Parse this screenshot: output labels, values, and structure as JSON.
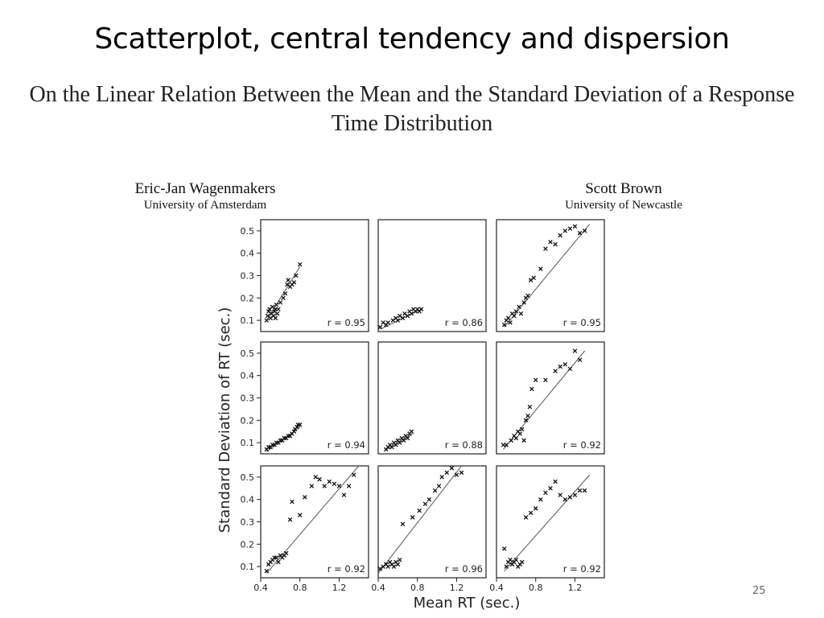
{
  "slide": {
    "title": "Scatterplot, central tendency and dispersion",
    "page_number": "25"
  },
  "paper": {
    "title": "On the Linear Relation Between the Mean and the Standard Deviation of a Response Time Distribution",
    "authors": [
      {
        "name": "Eric-Jan Wagenmakers",
        "affiliation": "University of Amsterdam"
      },
      {
        "name": "Scott Brown",
        "affiliation": "University of Newcastle"
      }
    ]
  },
  "chart_data": {
    "type": "scatter",
    "layout": "3x3 grid of panels",
    "xlabel": "Mean RT (sec.)",
    "ylabel": "Standard Deviation of RT (sec.)",
    "xlim": [
      0.4,
      1.5
    ],
    "ylim": [
      0.05,
      0.55
    ],
    "xticks": [
      0.4,
      0.8,
      1.2
    ],
    "yticks": [
      0.1,
      0.2,
      0.3,
      0.4,
      0.5
    ],
    "marker": "x",
    "panels": [
      {
        "r_label": "r = 0.95",
        "points": [
          [
            0.46,
            0.1
          ],
          [
            0.47,
            0.12
          ],
          [
            0.48,
            0.14
          ],
          [
            0.49,
            0.15
          ],
          [
            0.5,
            0.11
          ],
          [
            0.51,
            0.13
          ],
          [
            0.52,
            0.16
          ],
          [
            0.53,
            0.12
          ],
          [
            0.54,
            0.14
          ],
          [
            0.55,
            0.15
          ],
          [
            0.56,
            0.17
          ],
          [
            0.55,
            0.11
          ],
          [
            0.57,
            0.13
          ],
          [
            0.58,
            0.15
          ],
          [
            0.6,
            0.18
          ],
          [
            0.63,
            0.2
          ],
          [
            0.65,
            0.22
          ],
          [
            0.67,
            0.26
          ],
          [
            0.68,
            0.28
          ],
          [
            0.7,
            0.25
          ],
          [
            0.72,
            0.26
          ],
          [
            0.74,
            0.27
          ],
          [
            0.76,
            0.3
          ],
          [
            0.8,
            0.35
          ]
        ],
        "fit": [
          [
            0.46,
            0.1
          ],
          [
            0.8,
            0.34
          ]
        ]
      },
      {
        "r_label": "r = 0.86",
        "points": [
          [
            0.42,
            0.07
          ],
          [
            0.45,
            0.09
          ],
          [
            0.48,
            0.08
          ],
          [
            0.5,
            0.09
          ],
          [
            0.55,
            0.1
          ],
          [
            0.58,
            0.11
          ],
          [
            0.6,
            0.1
          ],
          [
            0.62,
            0.12
          ],
          [
            0.65,
            0.11
          ],
          [
            0.67,
            0.13
          ],
          [
            0.7,
            0.12
          ],
          [
            0.72,
            0.14
          ],
          [
            0.74,
            0.13
          ],
          [
            0.76,
            0.15
          ],
          [
            0.78,
            0.14
          ],
          [
            0.8,
            0.15
          ],
          [
            0.82,
            0.14
          ],
          [
            0.84,
            0.15
          ]
        ],
        "fit": [
          [
            0.42,
            0.06
          ],
          [
            0.84,
            0.15
          ]
        ]
      },
      {
        "r_label": "r = 0.95",
        "points": [
          [
            0.48,
            0.08
          ],
          [
            0.5,
            0.1
          ],
          [
            0.52,
            0.11
          ],
          [
            0.54,
            0.09
          ],
          [
            0.56,
            0.13
          ],
          [
            0.58,
            0.12
          ],
          [
            0.6,
            0.14
          ],
          [
            0.63,
            0.16
          ],
          [
            0.65,
            0.13
          ],
          [
            0.68,
            0.18
          ],
          [
            0.7,
            0.2
          ],
          [
            0.72,
            0.21
          ],
          [
            0.75,
            0.28
          ],
          [
            0.78,
            0.29
          ],
          [
            0.85,
            0.33
          ],
          [
            0.9,
            0.42
          ],
          [
            0.95,
            0.45
          ],
          [
            1.0,
            0.44
          ],
          [
            1.05,
            0.48
          ],
          [
            1.1,
            0.5
          ],
          [
            1.15,
            0.51
          ],
          [
            1.2,
            0.52
          ],
          [
            1.25,
            0.49
          ],
          [
            1.3,
            0.5
          ]
        ],
        "fit": [
          [
            0.48,
            0.07
          ],
          [
            1.35,
            0.53
          ]
        ]
      },
      {
        "r_label": "r = 0.94",
        "points": [
          [
            0.46,
            0.07
          ],
          [
            0.48,
            0.08
          ],
          [
            0.5,
            0.08
          ],
          [
            0.52,
            0.09
          ],
          [
            0.54,
            0.09
          ],
          [
            0.56,
            0.1
          ],
          [
            0.58,
            0.1
          ],
          [
            0.6,
            0.11
          ],
          [
            0.62,
            0.11
          ],
          [
            0.64,
            0.12
          ],
          [
            0.66,
            0.12
          ],
          [
            0.68,
            0.13
          ],
          [
            0.7,
            0.13
          ],
          [
            0.72,
            0.14
          ],
          [
            0.74,
            0.15
          ],
          [
            0.75,
            0.16
          ],
          [
            0.77,
            0.17
          ],
          [
            0.78,
            0.18
          ],
          [
            0.8,
            0.18
          ]
        ],
        "fit": [
          [
            0.46,
            0.06
          ],
          [
            0.8,
            0.17
          ]
        ]
      },
      {
        "r_label": "r = 0.88",
        "points": [
          [
            0.48,
            0.07
          ],
          [
            0.5,
            0.08
          ],
          [
            0.52,
            0.09
          ],
          [
            0.54,
            0.08
          ],
          [
            0.56,
            0.1
          ],
          [
            0.58,
            0.09
          ],
          [
            0.6,
            0.11
          ],
          [
            0.62,
            0.1
          ],
          [
            0.64,
            0.12
          ],
          [
            0.66,
            0.11
          ],
          [
            0.68,
            0.13
          ],
          [
            0.7,
            0.12
          ],
          [
            0.72,
            0.14
          ],
          [
            0.74,
            0.15
          ]
        ],
        "fit": [
          [
            0.48,
            0.07
          ],
          [
            0.75,
            0.14
          ]
        ]
      },
      {
        "r_label": "r = 0.92",
        "points": [
          [
            0.47,
            0.09
          ],
          [
            0.5,
            0.09
          ],
          [
            0.55,
            0.11
          ],
          [
            0.58,
            0.13
          ],
          [
            0.6,
            0.12
          ],
          [
            0.62,
            0.15
          ],
          [
            0.64,
            0.14
          ],
          [
            0.66,
            0.16
          ],
          [
            0.68,
            0.11
          ],
          [
            0.7,
            0.2
          ],
          [
            0.72,
            0.22
          ],
          [
            0.74,
            0.26
          ],
          [
            0.76,
            0.34
          ],
          [
            0.8,
            0.38
          ],
          [
            0.9,
            0.38
          ],
          [
            1.0,
            0.42
          ],
          [
            1.05,
            0.44
          ],
          [
            1.1,
            0.45
          ],
          [
            1.15,
            0.43
          ],
          [
            1.2,
            0.51
          ],
          [
            1.25,
            0.47
          ]
        ],
        "fit": [
          [
            0.47,
            0.07
          ],
          [
            1.3,
            0.51
          ]
        ]
      },
      {
        "r_label": "r = 0.92",
        "points": [
          [
            0.46,
            0.08
          ],
          [
            0.48,
            0.11
          ],
          [
            0.5,
            0.12
          ],
          [
            0.52,
            0.13
          ],
          [
            0.54,
            0.14
          ],
          [
            0.56,
            0.14
          ],
          [
            0.58,
            0.12
          ],
          [
            0.6,
            0.15
          ],
          [
            0.62,
            0.14
          ],
          [
            0.64,
            0.15
          ],
          [
            0.66,
            0.16
          ],
          [
            0.7,
            0.31
          ],
          [
            0.72,
            0.39
          ],
          [
            0.8,
            0.33
          ],
          [
            0.85,
            0.41
          ],
          [
            0.92,
            0.46
          ],
          [
            0.96,
            0.5
          ],
          [
            1.0,
            0.49
          ],
          [
            1.05,
            0.46
          ],
          [
            1.1,
            0.48
          ],
          [
            1.15,
            0.47
          ],
          [
            1.2,
            0.46
          ],
          [
            1.25,
            0.42
          ],
          [
            1.3,
            0.46
          ],
          [
            1.35,
            0.51
          ]
        ],
        "fit": [
          [
            0.46,
            0.07
          ],
          [
            1.4,
            0.55
          ]
        ]
      },
      {
        "r_label": "r = 0.96",
        "points": [
          [
            0.42,
            0.09
          ],
          [
            0.45,
            0.1
          ],
          [
            0.48,
            0.11
          ],
          [
            0.5,
            0.1
          ],
          [
            0.52,
            0.12
          ],
          [
            0.54,
            0.11
          ],
          [
            0.56,
            0.1
          ],
          [
            0.58,
            0.12
          ],
          [
            0.6,
            0.11
          ],
          [
            0.62,
            0.13
          ],
          [
            0.65,
            0.29
          ],
          [
            0.75,
            0.32
          ],
          [
            0.82,
            0.35
          ],
          [
            0.88,
            0.38
          ],
          [
            0.92,
            0.4
          ],
          [
            0.98,
            0.44
          ],
          [
            1.02,
            0.46
          ],
          [
            1.05,
            0.5
          ],
          [
            1.1,
            0.52
          ],
          [
            1.15,
            0.54
          ],
          [
            1.2,
            0.51
          ],
          [
            1.25,
            0.52
          ]
        ],
        "fit": [
          [
            0.4,
            0.07
          ],
          [
            1.25,
            0.55
          ]
        ]
      },
      {
        "r_label": "r = 0.92",
        "points": [
          [
            0.48,
            0.18
          ],
          [
            0.5,
            0.1
          ],
          [
            0.52,
            0.12
          ],
          [
            0.54,
            0.13
          ],
          [
            0.56,
            0.11
          ],
          [
            0.58,
            0.12
          ],
          [
            0.6,
            0.13
          ],
          [
            0.62,
            0.1
          ],
          [
            0.64,
            0.11
          ],
          [
            0.66,
            0.12
          ],
          [
            0.7,
            0.32
          ],
          [
            0.75,
            0.34
          ],
          [
            0.8,
            0.36
          ],
          [
            0.85,
            0.4
          ],
          [
            0.9,
            0.43
          ],
          [
            0.95,
            0.45
          ],
          [
            1.0,
            0.48
          ],
          [
            1.05,
            0.42
          ],
          [
            1.1,
            0.4
          ],
          [
            1.15,
            0.41
          ],
          [
            1.2,
            0.42
          ],
          [
            1.25,
            0.44
          ],
          [
            1.3,
            0.44
          ]
        ],
        "fit": [
          [
            0.48,
            0.08
          ],
          [
            1.35,
            0.51
          ]
        ]
      }
    ]
  }
}
